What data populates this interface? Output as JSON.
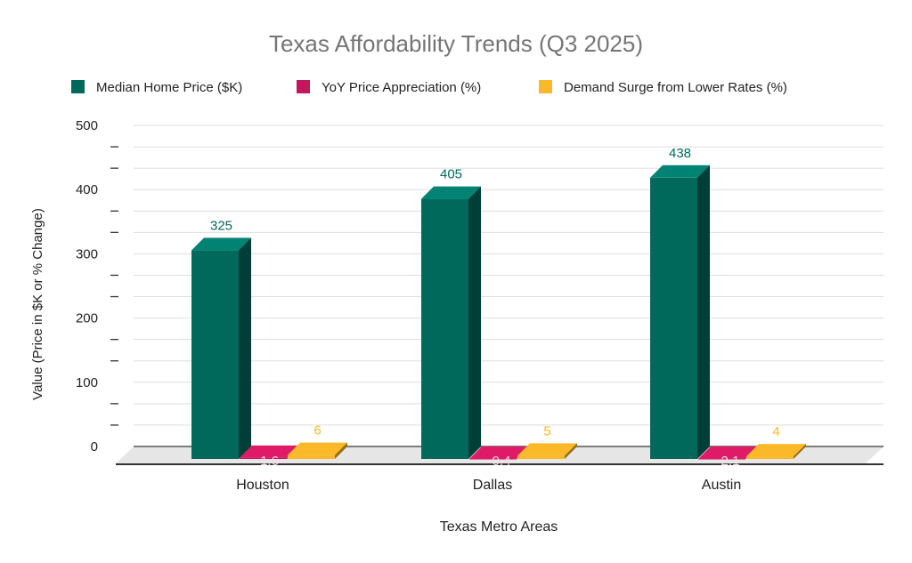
{
  "chart_data": {
    "type": "bar",
    "style": "3d",
    "title": "Texas Affordability Trends (Q3 2025)",
    "xlabel": "Texas Metro Areas",
    "ylabel": "Value (Price in $K or % Change)",
    "categories": [
      "Houston",
      "Dallas",
      "Austin"
    ],
    "series": [
      {
        "name": "Median Home Price ($K)",
        "values": [
          325,
          405,
          438
        ],
        "labels": [
          "325",
          "405",
          "438"
        ],
        "color": "#00695c"
      },
      {
        "name": "YoY Price Appreciation (%)",
        "values": [
          1.6,
          -0.4,
          -2.1
        ],
        "labels": [
          "1.6",
          "-0.4",
          "-2.1"
        ],
        "color": "#c2185b"
      },
      {
        "name": "Demand Surge from Lower Rates (%)",
        "values": [
          6,
          5,
          4
        ],
        "labels": [
          "6",
          "5",
          "4"
        ],
        "color": "#fbb829"
      }
    ],
    "yticks": [
      "0",
      "100",
      "200",
      "300",
      "400",
      "500"
    ],
    "ylim": [
      0,
      500
    ],
    "grid": true,
    "legend": "top"
  }
}
